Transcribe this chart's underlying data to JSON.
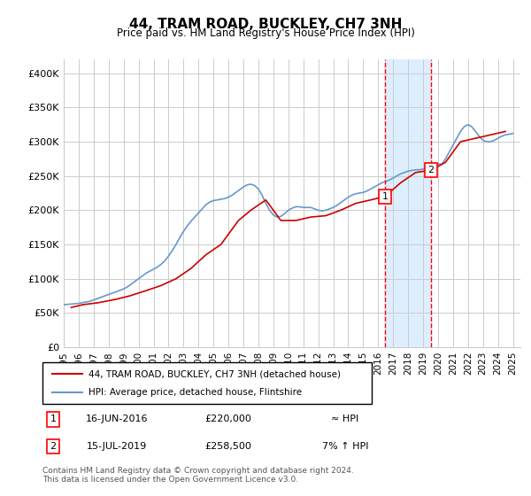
{
  "title": "44, TRAM ROAD, BUCKLEY, CH7 3NH",
  "subtitle": "Price paid vs. HM Land Registry's House Price Index (HPI)",
  "xlabel": "",
  "ylabel": "",
  "ylim": [
    0,
    420000
  ],
  "yticks": [
    0,
    50000,
    100000,
    150000,
    200000,
    250000,
    300000,
    350000,
    400000
  ],
  "ytick_labels": [
    "£0",
    "£50K",
    "£100K",
    "£150K",
    "£200K",
    "£250K",
    "£300K",
    "£350K",
    "£400K"
  ],
  "xlim_start": 1995.0,
  "xlim_end": 2025.5,
  "xticks": [
    1995,
    1996,
    1997,
    1998,
    1999,
    2000,
    2001,
    2002,
    2003,
    2004,
    2005,
    2006,
    2007,
    2008,
    2009,
    2010,
    2011,
    2012,
    2013,
    2014,
    2015,
    2016,
    2017,
    2018,
    2019,
    2020,
    2021,
    2022,
    2023,
    2024,
    2025
  ],
  "red_line_color": "#cc0000",
  "blue_line_color": "#6699cc",
  "shaded_region_color": "#ddeeff",
  "grid_color": "#cccccc",
  "background_color": "#ffffff",
  "marker1_x": 2016.46,
  "marker1_y": 220000,
  "marker2_x": 2019.54,
  "marker2_y": 258500,
  "annotation1_label": "1",
  "annotation2_label": "2",
  "legend_line1": "44, TRAM ROAD, BUCKLEY, CH7 3NH (detached house)",
  "legend_line2": "HPI: Average price, detached house, Flintshire",
  "table_row1_num": "1",
  "table_row1_date": "16-JUN-2016",
  "table_row1_price": "£220,000",
  "table_row1_hpi": "≈ HPI",
  "table_row2_num": "2",
  "table_row2_date": "15-JUL-2019",
  "table_row2_price": "£258,500",
  "table_row2_hpi": "7% ↑ HPI",
  "footer": "Contains HM Land Registry data © Crown copyright and database right 2024.\nThis data is licensed under the Open Government Licence v3.0.",
  "hpi_data_x": [
    1995.0,
    1995.25,
    1995.5,
    1995.75,
    1996.0,
    1996.25,
    1996.5,
    1996.75,
    1997.0,
    1997.25,
    1997.5,
    1997.75,
    1998.0,
    1998.25,
    1998.5,
    1998.75,
    1999.0,
    1999.25,
    1999.5,
    1999.75,
    2000.0,
    2000.25,
    2000.5,
    2000.75,
    2001.0,
    2001.25,
    2001.5,
    2001.75,
    2002.0,
    2002.25,
    2002.5,
    2002.75,
    2003.0,
    2003.25,
    2003.5,
    2003.75,
    2004.0,
    2004.25,
    2004.5,
    2004.75,
    2005.0,
    2005.25,
    2005.5,
    2005.75,
    2006.0,
    2006.25,
    2006.5,
    2006.75,
    2007.0,
    2007.25,
    2007.5,
    2007.75,
    2008.0,
    2008.25,
    2008.5,
    2008.75,
    2009.0,
    2009.25,
    2009.5,
    2009.75,
    2010.0,
    2010.25,
    2010.5,
    2010.75,
    2011.0,
    2011.25,
    2011.5,
    2011.75,
    2012.0,
    2012.25,
    2012.5,
    2012.75,
    2013.0,
    2013.25,
    2013.5,
    2013.75,
    2014.0,
    2014.25,
    2014.5,
    2014.75,
    2015.0,
    2015.25,
    2015.5,
    2015.75,
    2016.0,
    2016.25,
    2016.5,
    2016.75,
    2017.0,
    2017.25,
    2017.5,
    2017.75,
    2018.0,
    2018.25,
    2018.5,
    2018.75,
    2019.0,
    2019.25,
    2019.5,
    2019.75,
    2020.0,
    2020.25,
    2020.5,
    2020.75,
    2021.0,
    2021.25,
    2021.5,
    2021.75,
    2022.0,
    2022.25,
    2022.5,
    2022.75,
    2023.0,
    2023.25,
    2023.5,
    2023.75,
    2024.0,
    2024.25,
    2024.5,
    2024.75,
    2025.0
  ],
  "hpi_data_y": [
    62000,
    62500,
    63000,
    63500,
    64000,
    65000,
    66000,
    67000,
    69000,
    71000,
    73000,
    75000,
    77000,
    79000,
    81000,
    83000,
    85000,
    88000,
    92000,
    96000,
    100000,
    104000,
    108000,
    111000,
    114000,
    117000,
    121000,
    126000,
    133000,
    141000,
    150000,
    160000,
    169000,
    177000,
    184000,
    190000,
    196000,
    202000,
    208000,
    212000,
    214000,
    215000,
    216000,
    217000,
    219000,
    222000,
    226000,
    230000,
    234000,
    237000,
    238000,
    236000,
    231000,
    222000,
    210000,
    200000,
    193000,
    190000,
    191000,
    195000,
    200000,
    203000,
    205000,
    205000,
    204000,
    204000,
    204000,
    202000,
    200000,
    199000,
    200000,
    202000,
    204000,
    207000,
    211000,
    215000,
    219000,
    222000,
    224000,
    225000,
    226000,
    228000,
    231000,
    234000,
    237000,
    240000,
    242000,
    244000,
    247000,
    250000,
    253000,
    255000,
    257000,
    258000,
    259000,
    259000,
    260000,
    261000,
    263000,
    266000,
    268000,
    267000,
    275000,
    285000,
    295000,
    305000,
    315000,
    322000,
    325000,
    322000,
    315000,
    308000,
    302000,
    300000,
    300000,
    302000,
    305000,
    308000,
    310000,
    311000,
    312000
  ],
  "price_data_x": [
    1995.5,
    1996.25,
    1997.33,
    1998.5,
    1999.42,
    2000.42,
    2001.5,
    2002.5,
    2003.5,
    2004.5,
    2005.5,
    2006.67,
    2007.5,
    2008.5,
    2009.5,
    2010.5,
    2011.5,
    2012.5,
    2013.5,
    2014.5,
    2015.5,
    2016.46,
    2017.5,
    2018.5,
    2019.54,
    2020.5,
    2021.5,
    2022.5,
    2023.5,
    2024.5
  ],
  "price_data_y": [
    58000,
    62000,
    65000,
    70000,
    75000,
    82000,
    90000,
    100000,
    115000,
    135000,
    150000,
    185000,
    200000,
    215000,
    185000,
    185000,
    190000,
    192000,
    200000,
    210000,
    215000,
    220000,
    240000,
    255000,
    258500,
    270000,
    300000,
    305000,
    310000,
    315000
  ]
}
